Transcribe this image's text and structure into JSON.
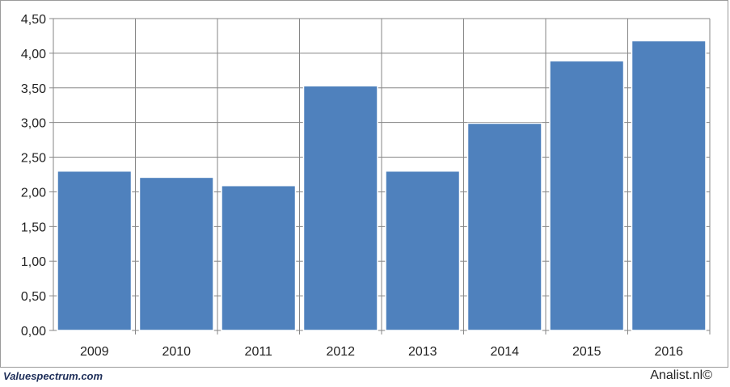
{
  "chart_data": {
    "type": "bar",
    "categories": [
      "2009",
      "2010",
      "2011",
      "2012",
      "2013",
      "2014",
      "2015",
      "2016"
    ],
    "values": [
      2.3,
      2.21,
      2.09,
      3.53,
      2.3,
      2.99,
      3.89,
      4.18
    ],
    "yticks": [
      "0,00",
      "0,50",
      "1,00",
      "1,50",
      "2,00",
      "2,50",
      "3,00",
      "3,50",
      "4,00",
      "4,50"
    ],
    "ylim": [
      0,
      4.5
    ],
    "title": "",
    "xlabel": "",
    "ylabel": "",
    "grid": true,
    "bar_color": "#4f81bd",
    "grid_color": "#868686"
  },
  "footer": {
    "source_left": "Valuespectrum.com",
    "source_right": "Analist.nl©"
  }
}
